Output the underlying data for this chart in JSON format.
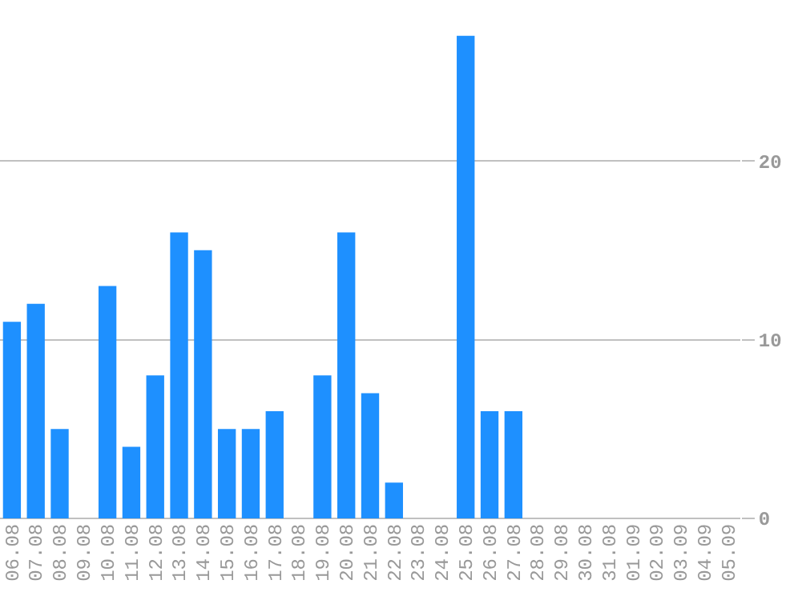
{
  "chart_data": {
    "type": "bar",
    "categories": [
      "06.08",
      "07.08",
      "08.08",
      "09.08",
      "10.08",
      "11.08",
      "12.08",
      "13.08",
      "14.08",
      "15.08",
      "16.08",
      "17.08",
      "18.08",
      "19.08",
      "20.08",
      "21.08",
      "22.08",
      "23.08",
      "24.08",
      "25.08",
      "26.08",
      "27.08",
      "28.08",
      "29.08",
      "30.08",
      "31.08",
      "01.09",
      "02.09",
      "03.09",
      "04.09",
      "05.09"
    ],
    "values": [
      11,
      12,
      5,
      0,
      13,
      4,
      8,
      16,
      15,
      5,
      5,
      6,
      0,
      8,
      16,
      7,
      2,
      0,
      0,
      27,
      6,
      6,
      0,
      0,
      0,
      0,
      0,
      0,
      0,
      0,
      0
    ],
    "color": "#1e90ff",
    "ylim": [
      0,
      29
    ],
    "yticks": [
      0,
      10,
      20
    ],
    "grid": "y",
    "legend": false
  }
}
